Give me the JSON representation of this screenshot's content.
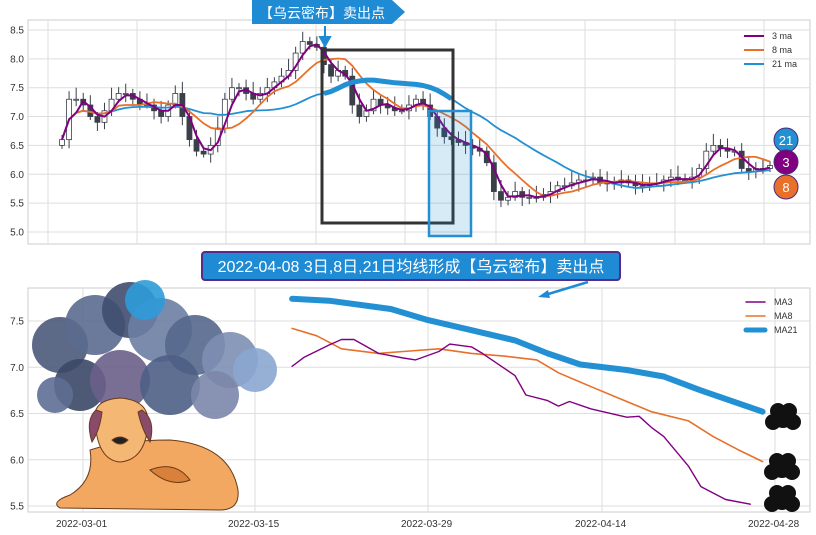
{
  "colors": {
    "ma3": "#800080",
    "ma8": "#e8702a",
    "ma21": "#2290d2",
    "banner": "#1f8bd4",
    "box": "#333333"
  },
  "chart_data": [
    {
      "type": "line",
      "subtype": "candlestick-with-moving-averages",
      "ylim": [
        4.8,
        8.6
      ],
      "yticks": [
        "5.0",
        "5.5",
        "6.0",
        "6.5",
        "7.0",
        "7.5",
        "8.0",
        "8.5"
      ],
      "grid": true,
      "legend": [
        "3 ma",
        "8 ma",
        "21 ma"
      ],
      "legend_position": "top-right",
      "banner": "【乌云密布】卖出点",
      "badges": [
        "21",
        "3",
        "8"
      ],
      "closes": [
        6.6,
        7.3,
        7.3,
        7.2,
        7.0,
        6.9,
        7.1,
        7.3,
        7.4,
        7.4,
        7.3,
        7.2,
        7.2,
        7.1,
        7.0,
        7.2,
        7.4,
        7.0,
        6.6,
        6.4,
        6.35,
        6.5,
        6.8,
        7.3,
        7.5,
        7.5,
        7.4,
        7.3,
        7.4,
        7.5,
        7.6,
        7.7,
        7.8,
        8.1,
        8.3,
        8.25,
        8.2,
        7.9,
        7.7,
        7.8,
        7.7,
        7.2,
        7.0,
        7.1,
        7.3,
        7.2,
        7.15,
        7.1,
        7.1,
        7.2,
        7.3,
        7.2,
        7.0,
        6.8,
        6.65,
        6.6,
        6.55,
        6.5,
        6.45,
        6.4,
        6.2,
        5.7,
        5.55,
        5.6,
        5.7,
        5.6,
        5.6,
        5.6,
        5.65,
        5.7,
        5.8,
        5.8,
        5.85,
        5.9,
        5.9,
        5.95,
        5.85,
        5.85,
        5.85,
        5.9,
        5.85,
        5.8,
        5.8,
        5.85,
        5.85,
        5.9,
        5.95,
        5.9,
        5.9,
        5.95,
        6.1,
        6.4,
        6.5,
        6.45,
        6.4,
        6.4,
        6.1,
        6.05,
        6.1,
        6.1,
        6.15
      ]
    },
    {
      "type": "line",
      "title": "2022-04-08 3日,8日,21日均线形成【乌云密布】卖出点",
      "ylim": [
        5.45,
        7.85
      ],
      "yticks": [
        "5.5",
        "6.0",
        "6.5",
        "7.0",
        "7.5"
      ],
      "xticks": [
        "2022-03-01",
        "2022-03-15",
        "2022-03-29",
        "2022-04-14",
        "2022-04-28"
      ],
      "grid": true,
      "legend_position": "top-right",
      "series": [
        {
          "name": "MA3",
          "x": [
            "03-18",
            "03-19",
            "03-21",
            "03-22",
            "03-23",
            "03-25",
            "03-27",
            "03-28",
            "03-30",
            "03-31",
            "04-02",
            "04-03",
            "04-05",
            "04-06",
            "04-07",
            "04-09",
            "04-10",
            "04-11",
            "04-13",
            "04-16",
            "04-17",
            "04-18",
            "04-19",
            "04-21",
            "04-22",
            "04-24",
            "04-26"
          ],
          "y": [
            7.01,
            7.11,
            7.24,
            7.3,
            7.3,
            7.15,
            7.1,
            7.08,
            7.17,
            7.25,
            7.22,
            7.15,
            6.99,
            6.91,
            6.7,
            6.64,
            6.58,
            6.63,
            6.55,
            6.46,
            6.47,
            6.35,
            6.25,
            5.93,
            5.71,
            5.57,
            5.52
          ]
        },
        {
          "name": "MA8",
          "x": [
            "03-18",
            "03-20",
            "03-22",
            "03-25",
            "03-27",
            "03-30",
            "04-02",
            "04-05",
            "04-08",
            "04-10",
            "04-13",
            "04-16",
            "04-18",
            "04-21",
            "04-23",
            "04-25",
            "04-27"
          ],
          "y": [
            7.42,
            7.34,
            7.2,
            7.15,
            7.17,
            7.2,
            7.15,
            7.12,
            7.08,
            6.94,
            6.79,
            6.63,
            6.52,
            6.42,
            6.25,
            6.11,
            5.98
          ]
        },
        {
          "name": "MA21",
          "x": [
            "03-18",
            "03-21",
            "03-26",
            "03-29",
            "04-02",
            "04-06",
            "04-09",
            "04-12",
            "04-16",
            "04-19",
            "04-22",
            "04-27"
          ],
          "y": [
            7.74,
            7.72,
            7.63,
            7.51,
            7.4,
            7.29,
            7.15,
            7.03,
            6.97,
            6.9,
            6.75,
            6.52
          ]
        }
      ]
    }
  ]
}
